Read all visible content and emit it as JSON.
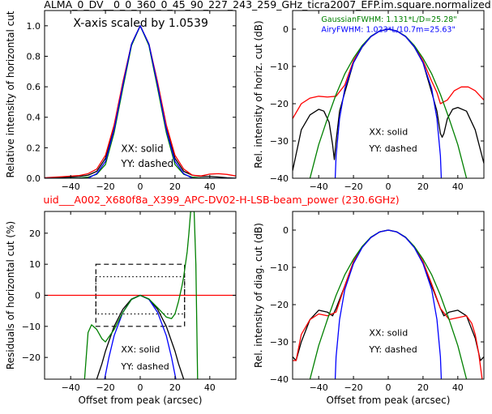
{
  "figure": {
    "title": "ALMA_0_DV__0_0_360_0_45_90_227_243_259_GHz_ticra2007_EFP.im.square.normalized",
    "subtitle": "uid___A002_X680f8a_X399_APC-DV02-H-LSB-beam_power (230.6GHz)",
    "subtitle_color": "#ff0000",
    "colors": {
      "black": "#000000",
      "red": "#ff0000",
      "green": "#008000",
      "blue": "#0000ff"
    }
  },
  "chart_data": [
    {
      "type": "line",
      "title": "",
      "xlabel": "",
      "ylabel": "Relative intensity of horizontal cut",
      "xlim": [
        -55,
        55
      ],
      "ylim": [
        0,
        1.1
      ],
      "xticks": [
        -40,
        -20,
        0,
        20,
        40
      ],
      "xtick_labels": [
        "−40",
        "−20",
        "0",
        "20",
        "40"
      ],
      "yticks": [
        0.0,
        0.2,
        0.4,
        0.6,
        0.8,
        1.0
      ],
      "ytick_labels": [
        "0.0",
        "0.2",
        "0.4",
        "0.6",
        "0.8",
        "1.0"
      ],
      "annotations": [
        "X-axis scaled by 1.0539",
        "XX: solid",
        "YY: dashed"
      ],
      "series": [
        {
          "color": "#000000",
          "x": [
            -55,
            -45,
            -35,
            -30,
            -25,
            -20,
            -15,
            -10,
            -5,
            0,
            5,
            10,
            15,
            20,
            25,
            30,
            35,
            40,
            45,
            50,
            55
          ],
          "y": [
            0.0,
            0.005,
            0.012,
            0.02,
            0.045,
            0.13,
            0.33,
            0.62,
            0.88,
            1.0,
            0.88,
            0.62,
            0.33,
            0.13,
            0.045,
            0.02,
            0.012,
            0.012,
            0.008,
            0.003,
            0.0
          ]
        },
        {
          "color": "#ff0000",
          "x": [
            -55,
            -45,
            -35,
            -30,
            -25,
            -20,
            -15,
            -10,
            -5,
            0,
            5,
            10,
            15,
            20,
            25,
            30,
            35,
            40,
            45,
            50,
            55
          ],
          "y": [
            0.003,
            0.01,
            0.018,
            0.03,
            0.06,
            0.15,
            0.35,
            0.63,
            0.88,
            1.0,
            0.88,
            0.63,
            0.35,
            0.15,
            0.06,
            0.02,
            0.015,
            0.027,
            0.03,
            0.025,
            0.015
          ]
        },
        {
          "color": "#008000",
          "x": [
            -55,
            -45,
            -35,
            -30,
            -25,
            -20,
            -15,
            -10,
            -5,
            0,
            5,
            10,
            15,
            20,
            25,
            30,
            35,
            40,
            45,
            50,
            55
          ],
          "y": [
            0.0,
            0.0,
            0.002,
            0.007,
            0.026,
            0.09,
            0.3,
            0.59,
            0.87,
            1.0,
            0.87,
            0.59,
            0.3,
            0.09,
            0.026,
            0.007,
            0.002,
            0.0,
            0.0,
            0.0,
            0.0
          ]
        },
        {
          "color": "#0000ff",
          "x": [
            -55,
            -45,
            -35,
            -30,
            -25,
            -20,
            -15,
            -10,
            -5,
            0,
            5,
            10,
            15,
            20,
            25,
            30,
            35,
            40,
            45,
            50,
            55
          ],
          "y": [
            0.0,
            0.0,
            0.0,
            0.0,
            0.03,
            0.11,
            0.32,
            0.61,
            0.88,
            1.0,
            0.88,
            0.61,
            0.32,
            0.11,
            0.03,
            0.0,
            0.0,
            0.0,
            0.0,
            0.0,
            0.0
          ]
        }
      ]
    },
    {
      "type": "line",
      "title": "",
      "xlabel": "",
      "ylabel": "Rel. intensity of horiz. cut (dB)",
      "xlim": [
        -55,
        55
      ],
      "ylim": [
        -40,
        5
      ],
      "xticks": [
        -40,
        -20,
        0,
        20,
        40
      ],
      "xtick_labels": [
        "−40",
        "−20",
        "0",
        "20",
        "40"
      ],
      "yticks": [
        -40,
        -30,
        -20,
        -10,
        0
      ],
      "ytick_labels": [
        "−40",
        "−30",
        "−20",
        "−10",
        "0"
      ],
      "annotations": [
        "GaussianFWHM: 1.131*L/D=25.28\"",
        "AiryFWHM: 1.023*L/10.7m=25.63\"",
        "XX: solid",
        "YY: dashed"
      ],
      "annotation_colors": [
        "#008000",
        "#0000ff",
        "#000000",
        "#000000"
      ],
      "series": [
        {
          "color": "#000000",
          "x": [
            -55,
            -50,
            -45,
            -40,
            -37,
            -34,
            -32,
            -31,
            -30,
            -28,
            -25,
            -20,
            -15,
            -10,
            -5,
            0,
            5,
            10,
            15,
            20,
            25,
            28,
            30,
            31,
            32,
            34,
            37,
            40,
            45,
            50,
            55
          ],
          "y": [
            -38,
            -27,
            -23,
            -21.5,
            -22,
            -25,
            -31,
            -35,
            -30,
            -22,
            -17,
            -9,
            -4.8,
            -2,
            -0.5,
            0,
            -0.5,
            -2,
            -4.8,
            -9,
            -17,
            -22,
            -28,
            -29,
            -28,
            -24,
            -21.5,
            -21,
            -22,
            -27,
            -36
          ]
        },
        {
          "color": "#ff0000",
          "x": [
            -55,
            -50,
            -45,
            -40,
            -35,
            -30,
            -25,
            -20,
            -15,
            -10,
            -5,
            0,
            5,
            10,
            15,
            20,
            25,
            28,
            30,
            32,
            34,
            38,
            42,
            46,
            50,
            55
          ],
          "y": [
            -24,
            -20,
            -18.5,
            -18,
            -18.2,
            -18,
            -15,
            -8.5,
            -4.5,
            -2,
            -0.5,
            0,
            -0.5,
            -2,
            -4.5,
            -8.5,
            -14,
            -17,
            -20,
            -19.5,
            -19,
            -16.5,
            -15.5,
            -15.5,
            -16.5,
            -19
          ]
        },
        {
          "color": "#008000",
          "x": [
            -45,
            -40,
            -35,
            -30,
            -25,
            -20,
            -15,
            -10,
            -5,
            0,
            5,
            10,
            15,
            20,
            25,
            30,
            35,
            40,
            45
          ],
          "y": [
            -40,
            -31,
            -24,
            -17.5,
            -12,
            -7.8,
            -4.4,
            -1.9,
            -0.5,
            0,
            -0.5,
            -1.9,
            -4.4,
            -7.8,
            -12,
            -17.5,
            -24,
            -31,
            -40
          ]
        },
        {
          "color": "#0000ff",
          "x": [
            -30.5,
            -30,
            -28,
            -25,
            -20,
            -15,
            -10,
            -5,
            0,
            5,
            10,
            15,
            20,
            25,
            28,
            30,
            30.5
          ],
          "y": [
            -40,
            -34,
            -24,
            -16,
            -9,
            -4.7,
            -2,
            -0.5,
            0,
            -0.5,
            -2,
            -4.7,
            -9,
            -16,
            -24,
            -34,
            -40
          ]
        }
      ]
    },
    {
      "type": "line",
      "title": "",
      "xlabel": "Offset from peak (arcsec)",
      "ylabel": "Residuals of horizontal cut (%)",
      "xlim": [
        -55,
        55
      ],
      "ylim": [
        -27,
        27
      ],
      "xticks": [
        -40,
        -20,
        0,
        20,
        40
      ],
      "xtick_labels": [
        "−40",
        "−20",
        "0",
        "20",
        "40"
      ],
      "yticks": [
        -20,
        -10,
        0,
        10,
        20
      ],
      "ytick_labels": [
        "−20",
        "−10",
        "0",
        "10",
        "20"
      ],
      "annotations": [
        "XX: solid",
        "YY: dashed"
      ],
      "rectangles": [
        {
          "style": "dashed",
          "x": [
            -25.5,
            25.5
          ],
          "y": [
            -10,
            10
          ]
        },
        {
          "style": "dotted",
          "x": [
            -25.5,
            25.5
          ],
          "y": [
            -6,
            6
          ]
        }
      ],
      "series": [
        {
          "color": "#ff0000",
          "x": [
            -55,
            55
          ],
          "y": [
            0,
            0
          ]
        },
        {
          "color": "#000000",
          "x": [
            -25,
            -22,
            -20,
            -15,
            -10,
            -5,
            0,
            5,
            10,
            15,
            20,
            22,
            25
          ],
          "y": [
            -27,
            -22,
            -18,
            -10,
            -4.5,
            -1.2,
            0,
            -1.2,
            -4.5,
            -10,
            -18,
            -22,
            -27
          ]
        },
        {
          "color": "#0000ff",
          "x": [
            -20.5,
            -18,
            -15,
            -10,
            -5,
            0,
            5,
            10,
            15,
            18,
            20.5
          ],
          "y": [
            -27,
            -20,
            -13,
            -5.5,
            -1.3,
            0,
            -1.3,
            -5.5,
            -13,
            -20,
            -27
          ]
        },
        {
          "color": "#008000",
          "x": [
            -32,
            -30,
            -28,
            -25,
            -22,
            -20,
            -15,
            -10,
            -5,
            0,
            5,
            10,
            15,
            18,
            20,
            22,
            24,
            25,
            26,
            27,
            28,
            29,
            30,
            31,
            32,
            33
          ],
          "y": [
            -27,
            -12,
            -9.5,
            -11,
            -14,
            -15,
            -11,
            -5.5,
            -1.3,
            0,
            -1.2,
            -4,
            -7,
            -7.5,
            -6,
            -2,
            3,
            6,
            10,
            14,
            20,
            27,
            27,
            27,
            10,
            -27
          ]
        }
      ]
    },
    {
      "type": "line",
      "title": "",
      "xlabel": "Offset from peak (arcsec)",
      "ylabel": "Rel. intensity of diag. cut (dB)",
      "xlim": [
        -55,
        55
      ],
      "ylim": [
        -40,
        5
      ],
      "xticks": [
        -40,
        -20,
        0,
        20,
        40
      ],
      "xtick_labels": [
        "−40",
        "−20",
        "0",
        "20",
        "40"
      ],
      "yticks": [
        -40,
        -30,
        -20,
        -10,
        0
      ],
      "ytick_labels": [
        "−40",
        "−30",
        "−20",
        "−10",
        "0"
      ],
      "annotations": [
        "XX: solid",
        "YY: dashed"
      ],
      "series": [
        {
          "color": "#000000",
          "x": [
            -55,
            -53,
            -50,
            -45,
            -40,
            -35,
            -32,
            -30,
            -25,
            -20,
            -15,
            -10,
            -5,
            0,
            5,
            10,
            15,
            20,
            25,
            30,
            32,
            35,
            40,
            45,
            50,
            53,
            55
          ],
          "y": [
            -34,
            -35,
            -30,
            -24,
            -21.5,
            -22,
            -23,
            -21,
            -15,
            -8.5,
            -4.5,
            -2,
            -0.5,
            0,
            -0.5,
            -2,
            -4.5,
            -8.5,
            -15,
            -21,
            -23,
            -22,
            -21.5,
            -23,
            -29,
            -35,
            -34
          ]
        },
        {
          "color": "#ff0000",
          "x": [
            -55,
            -53,
            -50,
            -45,
            -40,
            -35,
            -30,
            -25,
            -20,
            -15,
            -10,
            -5,
            0,
            5,
            10,
            15,
            20,
            25,
            30,
            35,
            40,
            45,
            48,
            50,
            52,
            54
          ],
          "y": [
            -35,
            -35,
            -28,
            -24,
            -22.5,
            -23,
            -22,
            -15,
            -8.5,
            -4.5,
            -2,
            -0.5,
            0,
            -0.5,
            -2,
            -4.5,
            -8.5,
            -14.5,
            -21,
            -24,
            -23.5,
            -23,
            -25,
            -28,
            -33,
            -40
          ]
        },
        {
          "color": "#008000",
          "x": [
            -45,
            -40,
            -35,
            -30,
            -25,
            -20,
            -15,
            -10,
            -5,
            0,
            5,
            10,
            15,
            20,
            25,
            30,
            35,
            40,
            45
          ],
          "y": [
            -40,
            -31,
            -24,
            -17.5,
            -12,
            -7.8,
            -4.4,
            -1.9,
            -0.5,
            0,
            -0.5,
            -1.9,
            -4.4,
            -7.8,
            -12,
            -17.5,
            -24,
            -31,
            -40
          ]
        },
        {
          "color": "#0000ff",
          "x": [
            -30.5,
            -30,
            -28,
            -25,
            -20,
            -15,
            -10,
            -5,
            0,
            5,
            10,
            15,
            20,
            25,
            28,
            30,
            30.5
          ],
          "y": [
            -40,
            -34,
            -24,
            -16,
            -9,
            -4.7,
            -2,
            -0.5,
            0,
            -0.5,
            -2,
            -4.7,
            -9,
            -16,
            -24,
            -34,
            -40
          ]
        }
      ]
    }
  ]
}
